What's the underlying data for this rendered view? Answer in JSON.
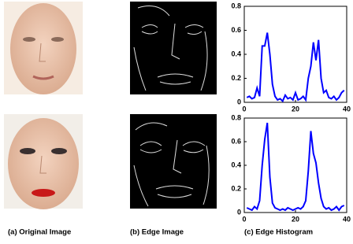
{
  "captions": [
    "(a) Original Image",
    "(b) Edge Image",
    "(c) Edge Histogram"
  ],
  "chart_data": [
    {
      "type": "line",
      "x": [
        1,
        2,
        3,
        4,
        5,
        6,
        7,
        8,
        9,
        10,
        11,
        12,
        13,
        14,
        15,
        16,
        17,
        18,
        19,
        20,
        21,
        22,
        23,
        24,
        25,
        26,
        27,
        28,
        29,
        30,
        31,
        32,
        33,
        34,
        35,
        36,
        37,
        38,
        39
      ],
      "values": [
        0.04,
        0.05,
        0.03,
        0.04,
        0.12,
        0.05,
        0.47,
        0.47,
        0.58,
        0.4,
        0.15,
        0.05,
        0.02,
        0.03,
        0.01,
        0.06,
        0.03,
        0.04,
        0.02,
        0.08,
        0.02,
        0.03,
        0.05,
        0.02,
        0.2,
        0.3,
        0.5,
        0.35,
        0.52,
        0.2,
        0.08,
        0.1,
        0.04,
        0.03,
        0.05,
        0.02,
        0.04,
        0.08,
        0.1
      ],
      "color": "#0000ff",
      "xlim": [
        0,
        40
      ],
      "xticks": [
        0,
        20,
        40
      ],
      "ylim": [
        0,
        0.8
      ],
      "yticks": [
        0,
        0.2,
        0.4,
        0.6,
        0.8
      ]
    },
    {
      "type": "line",
      "x": [
        1,
        2,
        3,
        4,
        5,
        6,
        7,
        8,
        9,
        10,
        11,
        12,
        13,
        14,
        15,
        16,
        17,
        18,
        19,
        20,
        21,
        22,
        23,
        24,
        25,
        26,
        27,
        28,
        29,
        30,
        31,
        32,
        33,
        34,
        35,
        36,
        37,
        38,
        39
      ],
      "values": [
        0.04,
        0.03,
        0.02,
        0.05,
        0.03,
        0.1,
        0.4,
        0.62,
        0.76,
        0.3,
        0.08,
        0.04,
        0.03,
        0.02,
        0.03,
        0.02,
        0.04,
        0.03,
        0.02,
        0.03,
        0.04,
        0.03,
        0.05,
        0.1,
        0.35,
        0.69,
        0.5,
        0.42,
        0.25,
        0.12,
        0.05,
        0.03,
        0.04,
        0.02,
        0.03,
        0.05,
        0.02,
        0.05,
        0.06
      ],
      "color": "#0000ff",
      "xlim": [
        0,
        40
      ],
      "xticks": [
        0,
        20,
        40
      ],
      "ylim": [
        0,
        0.8
      ],
      "yticks": [
        0,
        0.2,
        0.4,
        0.6,
        0.8
      ]
    }
  ]
}
